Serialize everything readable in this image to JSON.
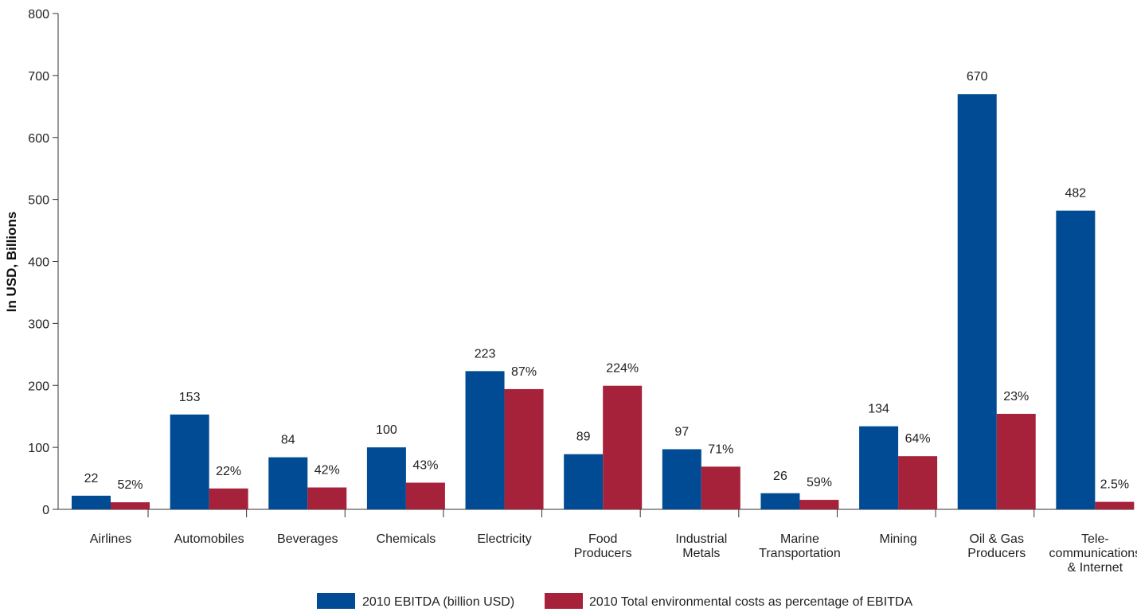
{
  "chart_data": {
    "type": "bar",
    "title": "",
    "xlabel": "",
    "ylabel": "In USD, Billions",
    "ylim": [
      0,
      800
    ],
    "yticks": [
      0,
      100,
      200,
      300,
      400,
      500,
      600,
      700,
      800
    ],
    "grid": false,
    "legend_position": "bottom",
    "categories": [
      [
        "Airlines"
      ],
      [
        "Automobiles"
      ],
      [
        "Beverages"
      ],
      [
        "Chemicals"
      ],
      [
        "Electricity"
      ],
      [
        "Food",
        "Producers"
      ],
      [
        "Industrial",
        "Metals"
      ],
      [
        "Marine",
        "Transportation"
      ],
      [
        "Mining"
      ],
      [
        "Oil & Gas",
        "Producers"
      ],
      [
        "Tele-",
        "communications",
        "& Internet"
      ]
    ],
    "series": [
      {
        "name": "2010 EBITDA (billion USD)",
        "color": "#004b93",
        "values": [
          22,
          153,
          84,
          100,
          223,
          89,
          97,
          26,
          134,
          670,
          482
        ],
        "labels": [
          "22",
          "153",
          "84",
          "100",
          "223",
          "89",
          "97",
          "26",
          "134",
          "670",
          "482"
        ]
      },
      {
        "name": "2010 Total environmental costs as percentage of EBITDA",
        "color": "#a6213a",
        "values": [
          11.4,
          33.7,
          35.3,
          43,
          194,
          199.4,
          68.9,
          15.3,
          85.8,
          154.1,
          12.1
        ],
        "labels": [
          "52%",
          "22%",
          "42%",
          "43%",
          "87%",
          "224%",
          "71%",
          "59%",
          "64%",
          "23%",
          "2.5%"
        ]
      }
    ]
  }
}
